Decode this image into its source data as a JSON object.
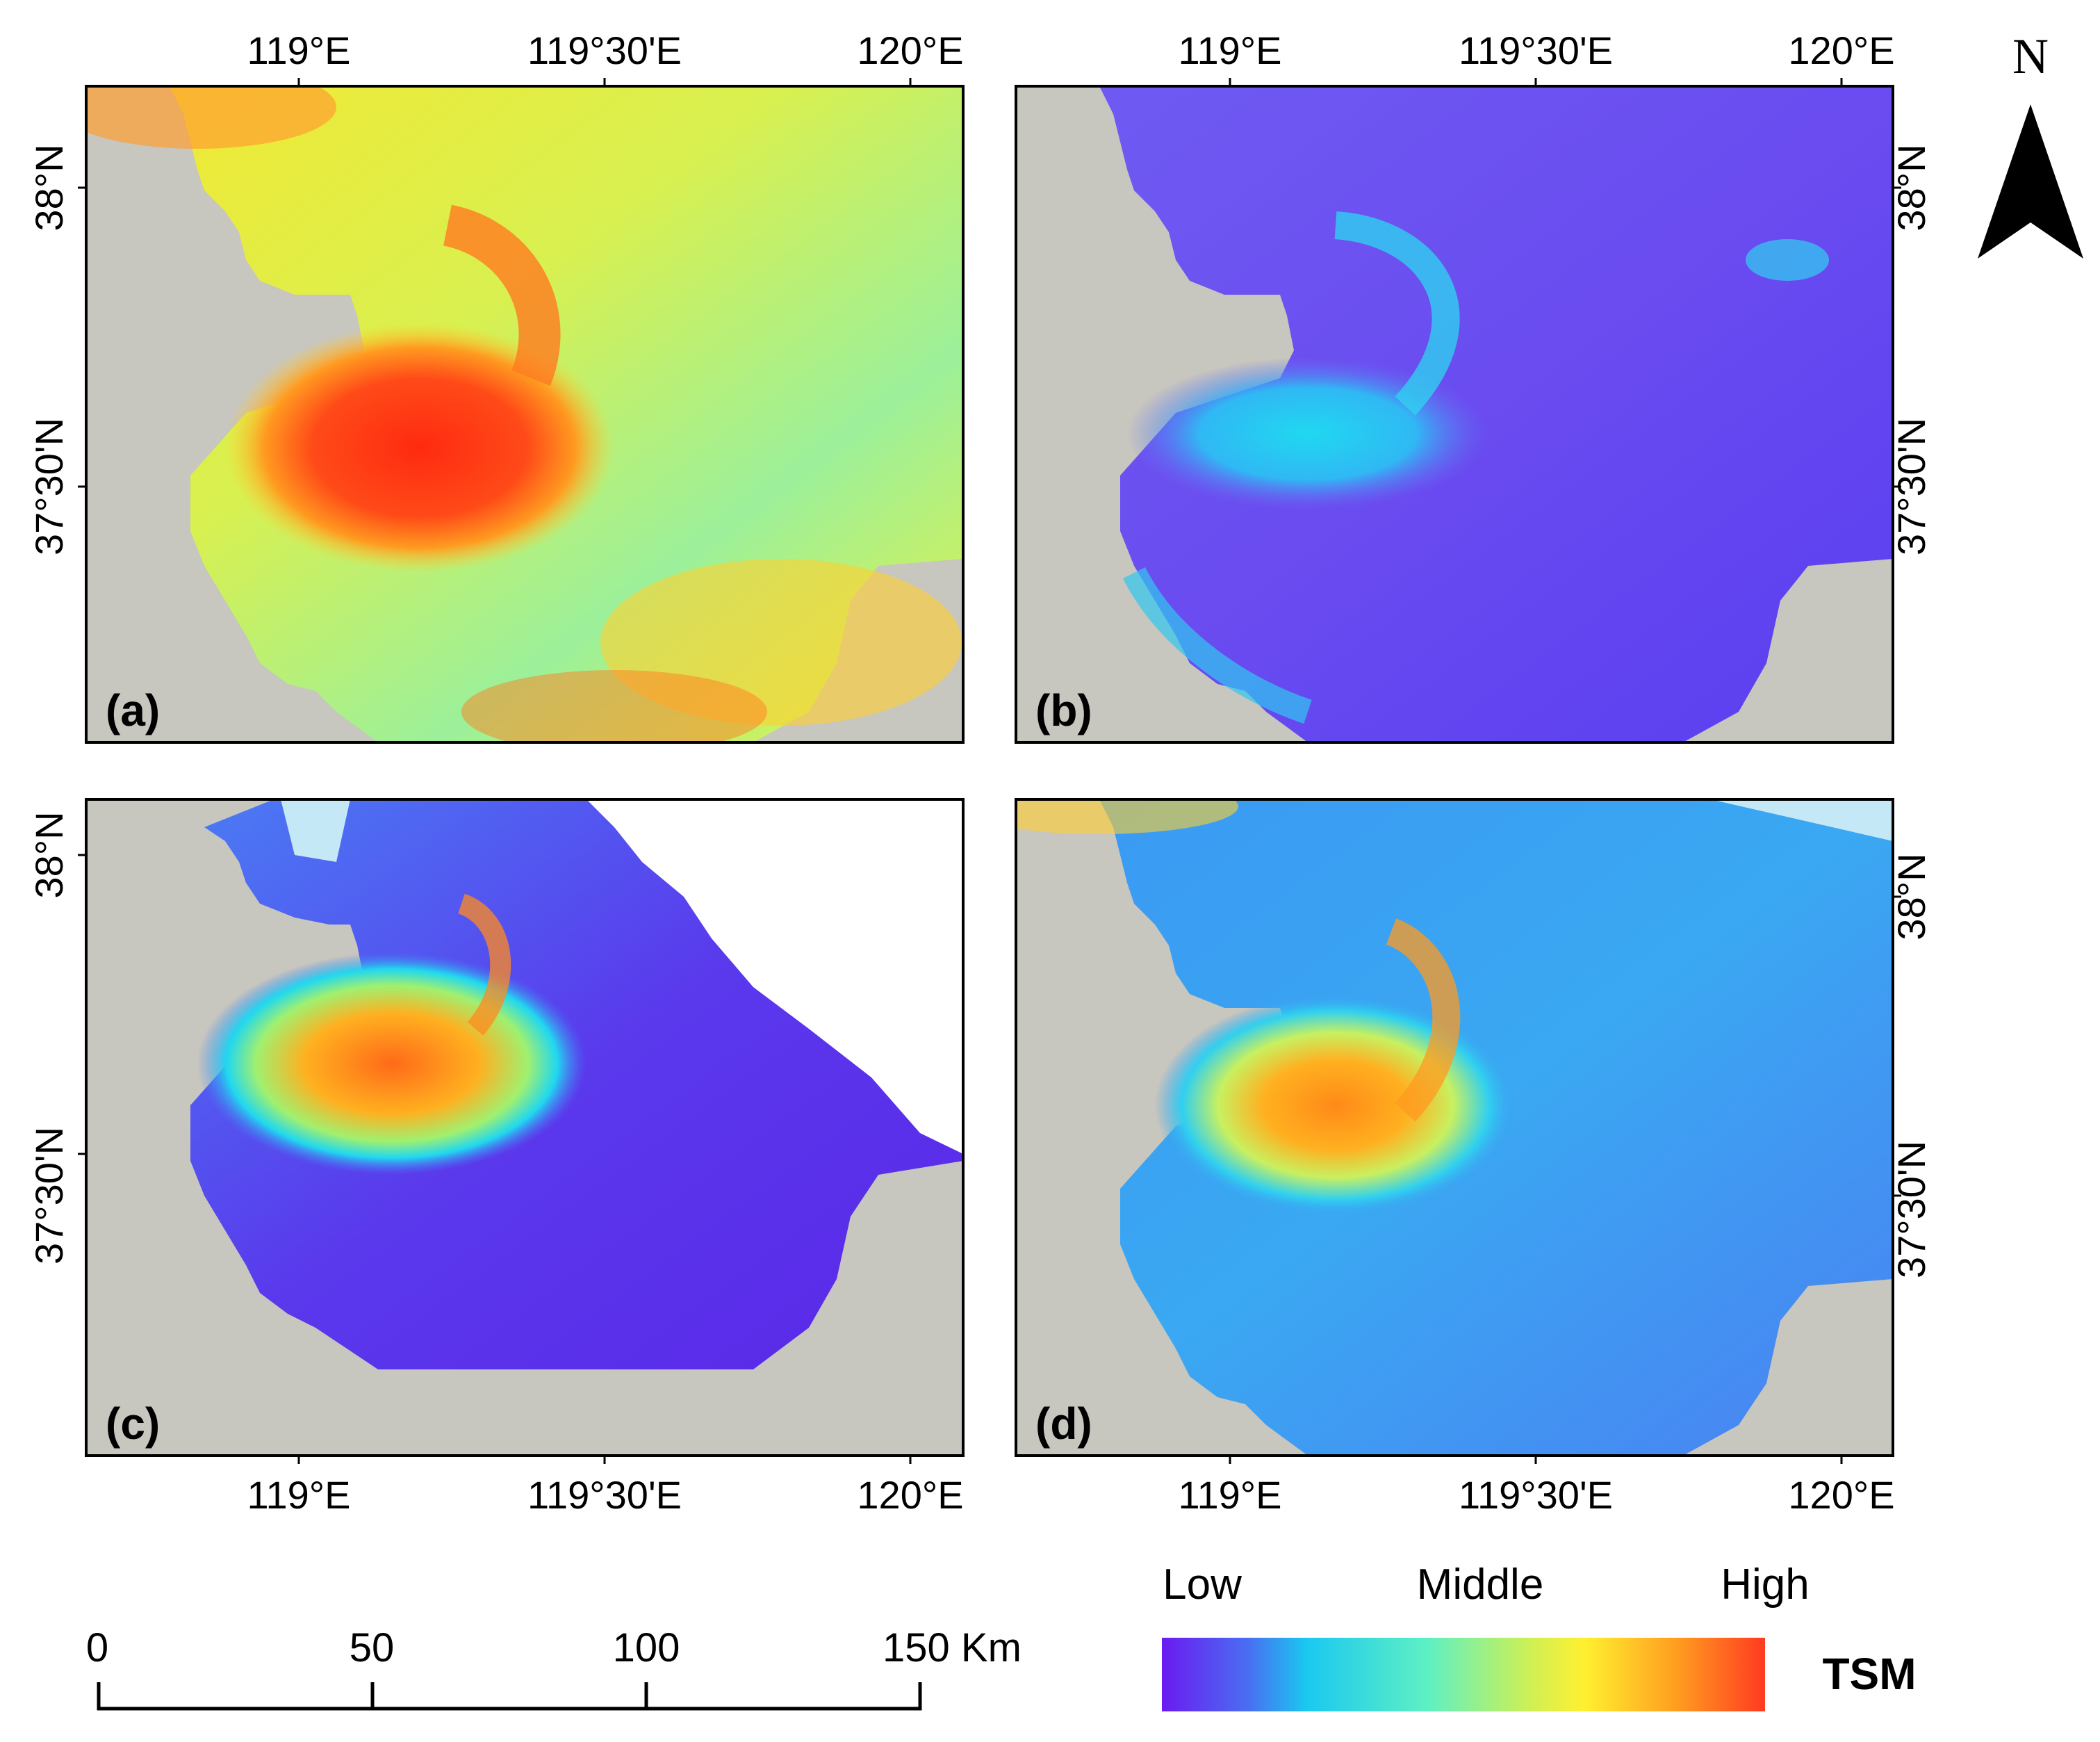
{
  "panels": [
    {
      "label": "(a)",
      "lon_ticks_top": [
        "119°E",
        "119°30'E",
        "120°E"
      ],
      "lat_ticks_left": [
        "38°N",
        "37°30'N"
      ],
      "lat_ticks_right": []
    },
    {
      "label": "(b)",
      "lon_ticks_top": [
        "119°E",
        "119°30'E",
        "120°E"
      ],
      "lat_ticks_left": [],
      "lat_ticks_right": [
        "38°N",
        "37°30'N"
      ]
    },
    {
      "label": "(c)",
      "lon_ticks_bottom": [
        "119°E",
        "119°30'E",
        "120°E"
      ],
      "lat_ticks_left": [
        "38°N",
        "37°30'N"
      ],
      "lat_ticks_right": []
    },
    {
      "label": "(d)",
      "lon_ticks_bottom": [
        "119°E",
        "119°30'E",
        "120°E"
      ],
      "lat_ticks_left": [],
      "lat_ticks_right": [
        "38°N",
        "37°30'N"
      ]
    }
  ],
  "north_arrow": {
    "label": "N",
    "icon": "north-arrow-icon"
  },
  "scale_bar": {
    "ticks": [
      "0",
      "50",
      "100",
      "150 Km"
    ]
  },
  "legend": {
    "low_label": "Low",
    "middle_label": "Middle",
    "high_label": "High",
    "title": "TSM",
    "colors": [
      "#6a1bf0",
      "#4a6cf2",
      "#1bc8f0",
      "#5ef0c4",
      "#c8f05a",
      "#fff030",
      "#ffa020",
      "#ff3a20"
    ]
  },
  "colors": {
    "land": "#c7c6bf",
    "cloud": "#ffffff",
    "nodata": "#c5e8f6"
  }
}
